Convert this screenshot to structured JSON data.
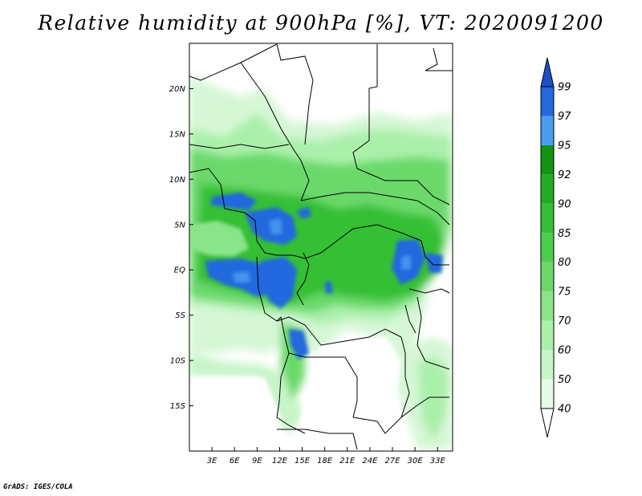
{
  "title": "Relative humidity at 900hPa [%], VT: 2020091200",
  "footer": "GrADS: IGES/COLA",
  "map": {
    "lat_range": [
      -20,
      25
    ],
    "lon_range": [
      0,
      35
    ],
    "lat_ticks": [
      {
        "value": 20,
        "label": "20N"
      },
      {
        "value": 15,
        "label": "15N"
      },
      {
        "value": 10,
        "label": "10N"
      },
      {
        "value": 5,
        "label": "5N"
      },
      {
        "value": 0,
        "label": "EQ"
      },
      {
        "value": -5,
        "label": "5S"
      },
      {
        "value": -10,
        "label": "10S"
      },
      {
        "value": -15,
        "label": "15S"
      }
    ],
    "lon_ticks": [
      {
        "value": 3,
        "label": "3E"
      },
      {
        "value": 6,
        "label": "6E"
      },
      {
        "value": 9,
        "label": "9E"
      },
      {
        "value": 12,
        "label": "12E"
      },
      {
        "value": 15,
        "label": "15E"
      },
      {
        "value": 18,
        "label": "18E"
      },
      {
        "value": 21,
        "label": "21E"
      },
      {
        "value": 24,
        "label": "24E"
      },
      {
        "value": 27,
        "label": "27E"
      },
      {
        "value": 30,
        "label": "30E"
      },
      {
        "value": 33,
        "label": "33E"
      }
    ]
  },
  "colorbar": {
    "levels": [
      40,
      50,
      60,
      70,
      75,
      80,
      85,
      90,
      92,
      95,
      97,
      99
    ],
    "colors": [
      "#ffffff",
      "#e6fce6",
      "#c8f5c8",
      "#aaf0aa",
      "#8ae48a",
      "#6ad96a",
      "#4dcd4d",
      "#35bf35",
      "#22ac22",
      "#139213",
      "#4a9cf0",
      "#2468de",
      "#1f4fc8"
    ]
  }
}
